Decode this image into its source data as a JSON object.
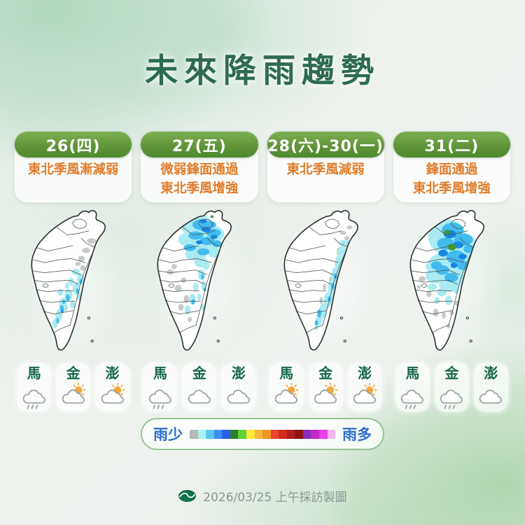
{
  "title": "未來降雨趨勢",
  "columns": [
    {
      "date": "26(四)",
      "desc": "東北季風漸減弱",
      "islands": [
        {
          "label": "馬",
          "icon": "rain-cloud-icon"
        },
        {
          "label": "金",
          "icon": "partly-sunny-icon"
        },
        {
          "label": "澎",
          "icon": "partly-sunny-icon"
        }
      ]
    },
    {
      "date": "27(五)",
      "desc": "微弱鋒面通過\n東北季風增強",
      "islands": [
        {
          "label": "馬",
          "icon": "rain-cloud-icon"
        },
        {
          "label": "金",
          "icon": "cloudy-icon"
        },
        {
          "label": "澎",
          "icon": "cloudy-icon"
        }
      ]
    },
    {
      "date": "28(六)-30(一)",
      "desc": "東北季風減弱",
      "islands": [
        {
          "label": "馬",
          "icon": "partly-sunny-icon"
        },
        {
          "label": "金",
          "icon": "partly-sunny-icon"
        },
        {
          "label": "澎",
          "icon": "partly-sunny-icon"
        }
      ]
    },
    {
      "date": "31(二)",
      "desc": "鋒面通過\n東北季風增強",
      "islands": [
        {
          "label": "馬",
          "icon": "rain-cloud-icon"
        },
        {
          "label": "金",
          "icon": "rain-cloud-icon"
        },
        {
          "label": "澎",
          "icon": "cloudy-icon"
        }
      ]
    }
  ],
  "legend": {
    "less_label": "雨少",
    "more_label": "雨多",
    "colors": [
      "#b5b9b8",
      "#aaf2f2",
      "#59c9f2",
      "#3f8ff0",
      "#2a5fe8",
      "#2e7d2e",
      "#5fd435",
      "#ffe83a",
      "#f2b83d",
      "#f29422",
      "#e8442a",
      "#d42a1e",
      "#b01e1e",
      "#8c1616",
      "#8b2bbf",
      "#c02ac0",
      "#ea3cea",
      "#f2b4ea"
    ]
  },
  "map_rain_levels": {
    "trace_gray": "#c7cbc9",
    "light": "#a9ebf3",
    "moderate": "#41bbee",
    "heavy": "#1886e2",
    "very_heavy_green": "#44982f"
  },
  "accent_colors": {
    "title_green": "#2d6b53",
    "header_green": "#5f9538",
    "desc_orange": "#e07c2a",
    "island_green": "#17684a",
    "legend_blue": "#2d6ed0"
  },
  "footer": {
    "caption": "2026/03/25 上午採訪製圖",
    "logo_icon": "cwa-logo-icon"
  }
}
